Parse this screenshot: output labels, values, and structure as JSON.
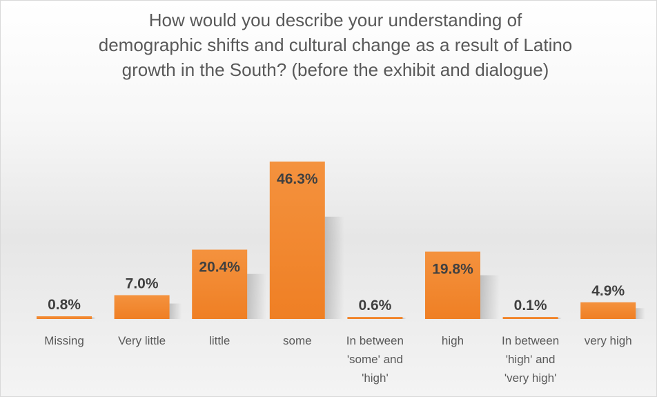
{
  "chart_data": {
    "type": "bar",
    "title": "How would you describe your understanding of demographic shifts and cultural change as a result of Latino growth in the South? (before the exhibit and dialogue)",
    "categories": [
      [
        "Missing"
      ],
      [
        "Very little"
      ],
      [
        "little"
      ],
      [
        "some"
      ],
      [
        "In between",
        "'some' and",
        "'high'"
      ],
      [
        "high"
      ],
      [
        "In between",
        "'high' and",
        "'very high'"
      ],
      [
        "very high"
      ]
    ],
    "values": [
      0.8,
      7.0,
      20.4,
      46.3,
      0.6,
      19.8,
      0.1,
      4.9
    ],
    "data_labels": [
      "0.8%",
      "7.0%",
      "20.4%",
      "46.3%",
      "0.6%",
      "19.8%",
      "0.1%",
      "4.9%"
    ],
    "value_unit": "%",
    "ylim": [
      0,
      46.3
    ],
    "grid": false,
    "legend": "none",
    "colors": {
      "bar": "#f28a33",
      "bar_dark": "#e8731a",
      "label": "#404040",
      "category": "#595959",
      "title": "#595959"
    }
  }
}
